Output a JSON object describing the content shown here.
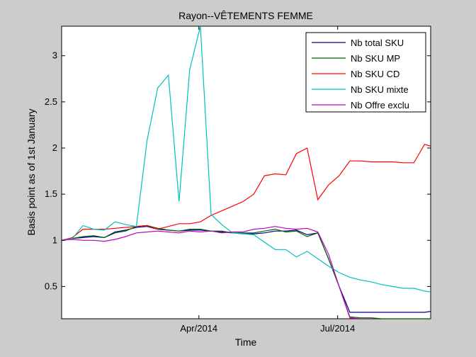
{
  "chart_data": {
    "type": "line",
    "title": "Rayon--VÊTEMENTS FEMME",
    "xlabel": "Time",
    "ylabel": "Basis point as of 1st January",
    "xlim": [
      "2014-01-01",
      "2014-08-31"
    ],
    "ylim": [
      0.15,
      3.32
    ],
    "x_ticks": [
      {
        "date": "2014-04-01",
        "label": "Apr/2014"
      },
      {
        "date": "2014-07-01",
        "label": "Jul/2014"
      }
    ],
    "y_ticks": [
      {
        "value": 0.5,
        "label": "0.5"
      },
      {
        "value": 1,
        "label": "1"
      },
      {
        "value": 1.5,
        "label": "1.5"
      },
      {
        "value": 2,
        "label": "2"
      },
      {
        "value": 2.5,
        "label": "2.5"
      },
      {
        "value": 3,
        "label": "3"
      }
    ],
    "grid": false,
    "legend_position": "top-right",
    "x": [
      "2014-01-01",
      "2014-01-08",
      "2014-01-15",
      "2014-01-22",
      "2014-01-29",
      "2014-02-05",
      "2014-02-12",
      "2014-02-19",
      "2014-02-26",
      "2014-03-05",
      "2014-03-12",
      "2014-03-19",
      "2014-03-26",
      "2014-04-02",
      "2014-04-09",
      "2014-04-16",
      "2014-04-23",
      "2014-04-30",
      "2014-05-07",
      "2014-05-14",
      "2014-05-21",
      "2014-05-28",
      "2014-06-04",
      "2014-06-11",
      "2014-06-18",
      "2014-06-25",
      "2014-07-02",
      "2014-07-09",
      "2014-07-16",
      "2014-07-23",
      "2014-07-30",
      "2014-08-06",
      "2014-08-13",
      "2014-08-20",
      "2014-08-27",
      "2014-08-31"
    ],
    "series": [
      {
        "name": "Nb total SKU",
        "color": "#00008b",
        "values": [
          1.0,
          1.02,
          1.03,
          1.04,
          1.03,
          1.09,
          1.11,
          1.14,
          1.15,
          1.12,
          1.11,
          1.1,
          1.11,
          1.11,
          1.1,
          1.09,
          1.08,
          1.07,
          1.07,
          1.08,
          1.1,
          1.1,
          1.11,
          1.06,
          1.08,
          0.8,
          0.5,
          0.22,
          0.22,
          0.22,
          0.22,
          0.22,
          0.22,
          0.22,
          0.22,
          0.23
        ]
      },
      {
        "name": "Nb SKU MP",
        "color": "#006400",
        "values": [
          1.0,
          1.02,
          1.04,
          1.05,
          1.03,
          1.08,
          1.1,
          1.15,
          1.16,
          1.13,
          1.11,
          1.1,
          1.12,
          1.12,
          1.1,
          1.1,
          1.08,
          1.08,
          1.08,
          1.1,
          1.12,
          1.09,
          1.1,
          1.04,
          1.08,
          0.8,
          0.5,
          0.17,
          0.16,
          0.16,
          0.15,
          0.15,
          0.15,
          0.15,
          0.15,
          0.15
        ]
      },
      {
        "name": "Nb SKU CD",
        "color": "#ff0000",
        "values": [
          1.0,
          1.03,
          1.12,
          1.12,
          1.12,
          1.13,
          1.14,
          1.15,
          1.16,
          1.12,
          1.15,
          1.18,
          1.18,
          1.2,
          1.27,
          1.32,
          1.37,
          1.42,
          1.5,
          1.7,
          1.72,
          1.71,
          1.94,
          2.0,
          1.44,
          1.6,
          1.7,
          1.86,
          1.86,
          1.85,
          1.85,
          1.85,
          1.84,
          1.84,
          2.04,
          2.02
        ]
      },
      {
        "name": "Nb SKU mixte",
        "color": "#00bfbf",
        "values": [
          1.0,
          1.02,
          1.16,
          1.12,
          1.11,
          1.2,
          1.17,
          1.15,
          2.08,
          2.65,
          2.79,
          1.42,
          2.85,
          3.32,
          1.28,
          1.17,
          1.08,
          1.07,
          1.06,
          0.98,
          0.9,
          0.9,
          0.82,
          0.88,
          0.8,
          0.72,
          0.65,
          0.6,
          0.57,
          0.55,
          0.52,
          0.5,
          0.48,
          0.48,
          0.45,
          0.44
        ]
      },
      {
        "name": "Nb Offre exclu",
        "color": "#bf00bf",
        "values": [
          1.0,
          1.01,
          1.0,
          1.0,
          0.99,
          1.01,
          1.04,
          1.08,
          1.09,
          1.1,
          1.09,
          1.08,
          1.1,
          1.09,
          1.1,
          1.08,
          1.09,
          1.09,
          1.12,
          1.13,
          1.15,
          1.13,
          1.12,
          1.13,
          1.09,
          0.85,
          0.5,
          0.16,
          0.15,
          0.15,
          0.14,
          0.14,
          0.14,
          0.14,
          0.14,
          0.14
        ]
      }
    ]
  }
}
